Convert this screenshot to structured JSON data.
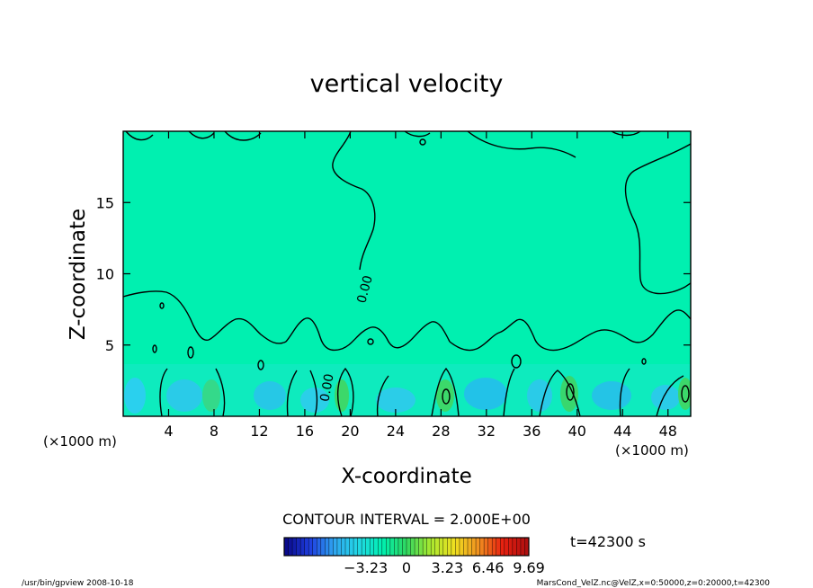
{
  "chart_data": {
    "type": "heatmap",
    "title": "vertical velocity",
    "xlabel": "X-coordinate",
    "ylabel": "Z-coordinate",
    "xunit": "(×1000 m)",
    "yunit": "(×1000 m)",
    "xlim": [
      0,
      50
    ],
    "ylim": [
      0,
      20
    ],
    "xticks": [
      4,
      8,
      12,
      16,
      20,
      24,
      28,
      32,
      36,
      40,
      44,
      48
    ],
    "yticks": [
      5,
      10,
      15
    ],
    "contour_interval_text": "CONTOUR INTERVAL = 2.000E+00",
    "contour_labels": [
      "0.00",
      "0.00"
    ],
    "time_label": "t=42300 s",
    "colorbar": {
      "min": -9.69,
      "max": 9.69,
      "ticks": [
        -3.23,
        0,
        3.23,
        6.46,
        9.69
      ],
      "tick_labels": [
        "−3.23",
        "0",
        "3.23",
        "6.46",
        "9.69"
      ],
      "colors": [
        "#0a0a8c",
        "#1f3fe0",
        "#2fa6f0",
        "#22d8e6",
        "#00f0b0",
        "#30d860",
        "#a8e830",
        "#f0e020",
        "#f09020",
        "#e82010",
        "#b01010"
      ]
    },
    "field_color": "#00f0b0",
    "grid": false
  },
  "footer": {
    "left": "/usr/bin/gpview   2008-10-18",
    "right": "MarsCond_VelZ.nc@VelZ,x=0:50000,z=0:20000,t=42300"
  }
}
